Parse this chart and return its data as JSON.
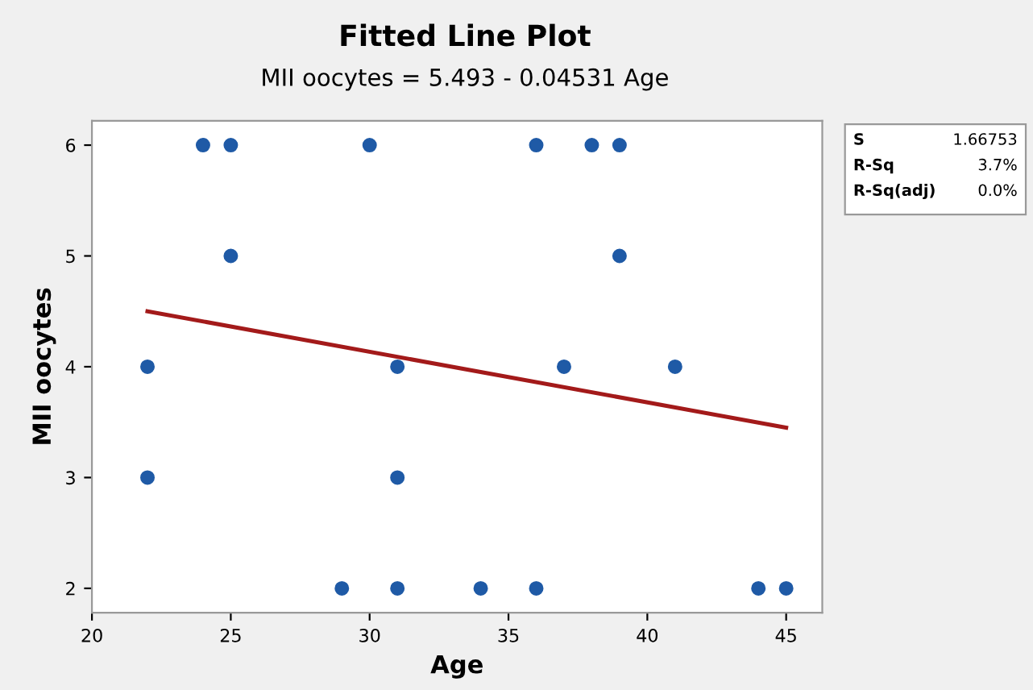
{
  "chart_data": {
    "type": "scatter",
    "title": "Fitted Line Plot",
    "subtitle": "MII oocytes = 5.493 - 0.04531 Age",
    "xlabel": "Age",
    "ylabel": "MII oocytes",
    "xlim": [
      20,
      46.3
    ],
    "ylim": [
      1.78,
      6.22
    ],
    "xticks": [
      20,
      25,
      30,
      35,
      40,
      45
    ],
    "yticks": [
      2,
      3,
      4,
      5,
      6
    ],
    "grid": false,
    "legend": false,
    "series": [
      {
        "marker": "circle",
        "color": "#1f5aa6",
        "x": [
          24,
          25,
          30,
          36,
          38,
          39,
          25,
          39,
          22,
          31,
          37,
          41,
          22,
          31,
          29,
          31,
          34,
          36,
          44,
          45
        ],
        "values": [
          6,
          6,
          6,
          6,
          6,
          6,
          5,
          5,
          4,
          4,
          4,
          4,
          3,
          3,
          2,
          2,
          2,
          2,
          2,
          2
        ]
      },
      {
        "type": "line",
        "color": "#a31a1a",
        "x": [
          22,
          45
        ],
        "values": [
          4.5,
          3.45
        ],
        "line_style": "solid",
        "marker": "none"
      }
    ],
    "annotations": [
      "S",
      "1.66753",
      "R-Sq",
      "3.7%",
      "R-Sq(adj)",
      "0.0%"
    ]
  }
}
